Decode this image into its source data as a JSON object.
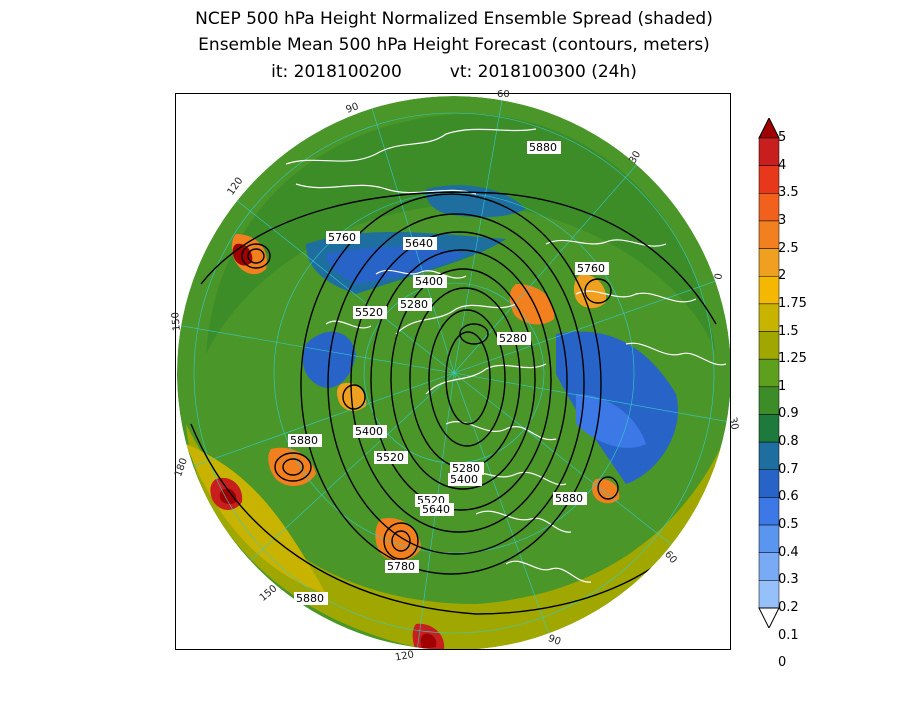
{
  "title": {
    "line1": "NCEP 500 hPa Height Normalized Ensemble Spread (shaded)",
    "line2": "Ensemble Mean 500 hPa Height Forecast (contours, meters)",
    "init": "it: 2018100200",
    "valid": "vt: 2018100300 (24h)"
  },
  "longitude_labels": [
    "60",
    "30",
    "0",
    "30",
    "60",
    "90",
    "120",
    "150",
    "180",
    "150",
    "120",
    "90"
  ],
  "contour_labels": [
    "5880",
    "5760",
    "5640",
    "5400",
    "5520",
    "5280",
    "5280",
    "5760",
    "5400",
    "5880",
    "5520",
    "5280",
    "5400",
    "5520",
    "5640",
    "5880",
    "5780",
    "5880"
  ],
  "colorbar": {
    "labels": [
      "5",
      "4",
      "3.5",
      "3",
      "2.5",
      "2",
      "1.75",
      "1.5",
      "1.25",
      "1",
      "0.9",
      "0.8",
      "0.7",
      "0.6",
      "0.5",
      "0.4",
      "0.3",
      "0.2",
      "0.1",
      "0"
    ],
    "colors": [
      "#a00000",
      "#c81e1e",
      "#e8381c",
      "#f2601e",
      "#f2801e",
      "#f0a020",
      "#f5b800",
      "#c8b400",
      "#a0a800",
      "#5ea01e",
      "#3c8c28",
      "#1e7a3c",
      "#1e6ea0",
      "#2864c8",
      "#3c78e6",
      "#5a96f0",
      "#78aaf5",
      "#96c0fa",
      "#b4d8ff"
    ]
  },
  "colors": {
    "land_outline": "#ffffff",
    "contour": "#000000",
    "lat_lon_grid": "#33cccc"
  }
}
